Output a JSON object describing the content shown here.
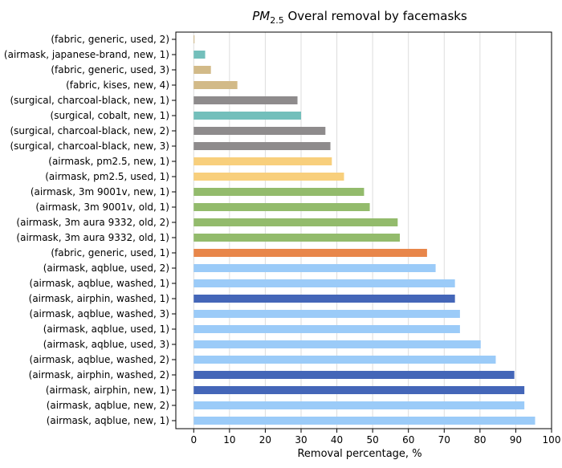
{
  "chart_data": {
    "type": "bar",
    "orientation": "horizontal",
    "title": {
      "main": "PM",
      "sub": "2.5",
      "rest": " Overal removal by facemasks"
    },
    "xlabel": "Removal percentage, %",
    "ylabel": "",
    "xlim": [
      -5,
      100
    ],
    "xticks": [
      0,
      10,
      20,
      30,
      40,
      50,
      60,
      70,
      80,
      90,
      100
    ],
    "grid": "vertical",
    "legend": "none",
    "categories": [
      "(fabric, generic, used, 2)",
      "(airmask, japanese-brand, new, 1)",
      "(fabric, generic, used, 3)",
      "(fabric, kises, new, 4)",
      "(surgical, charcoal-black, new, 1)",
      "(surgical, cobalt, new, 1)",
      "(surgical, charcoal-black, new, 2)",
      "(surgical, charcoal-black, new, 3)",
      "(airmask, pm2.5, new, 1)",
      "(airmask, pm2.5, used, 1)",
      "(airmask, 3m 9001v, new, 1)",
      "(airmask, 3m 9001v, old, 1)",
      "(airmask, 3m aura 9332, old, 2)",
      "(airmask, 3m aura 9332, old, 1)",
      "(fabric, generic, used, 1)",
      "(airmask, aqblue, used, 2)",
      "(airmask, aqblue, washed, 1)",
      "(airmask, airphin, washed, 1)",
      "(airmask, aqblue, washed, 3)",
      "(airmask, aqblue, used, 1)",
      "(airmask, aqblue, used, 3)",
      "(airmask, aqblue, washed, 2)",
      "(airmask, airphin, washed, 2)",
      "(airmask, airphin, new, 1)",
      "(airmask, aqblue, new, 2)",
      "(airmask, aqblue, new, 1)"
    ],
    "values": [
      0.2,
      3.2,
      4.8,
      12.2,
      29.0,
      30.0,
      36.8,
      38.2,
      38.6,
      42.0,
      47.6,
      49.2,
      57.0,
      57.6,
      65.2,
      67.6,
      73.0,
      73.0,
      74.4,
      74.4,
      80.2,
      84.4,
      89.6,
      92.4,
      92.4,
      95.4
    ],
    "colors": [
      "#d2ba88",
      "#73bfbb",
      "#d2ba88",
      "#d2ba88",
      "#8e8b8c",
      "#73bfbb",
      "#8e8b8c",
      "#8e8b8c",
      "#f8cf7c",
      "#f8cf7c",
      "#93bb6c",
      "#93bb6c",
      "#93bb6c",
      "#93bb6c",
      "#e8864a",
      "#9bcbf8",
      "#9bcbf8",
      "#4466b8",
      "#9bcbf8",
      "#9bcbf8",
      "#9bcbf8",
      "#9bcbf8",
      "#4466b8",
      "#4466b8",
      "#9bcbf8",
      "#9bcbf8"
    ]
  }
}
